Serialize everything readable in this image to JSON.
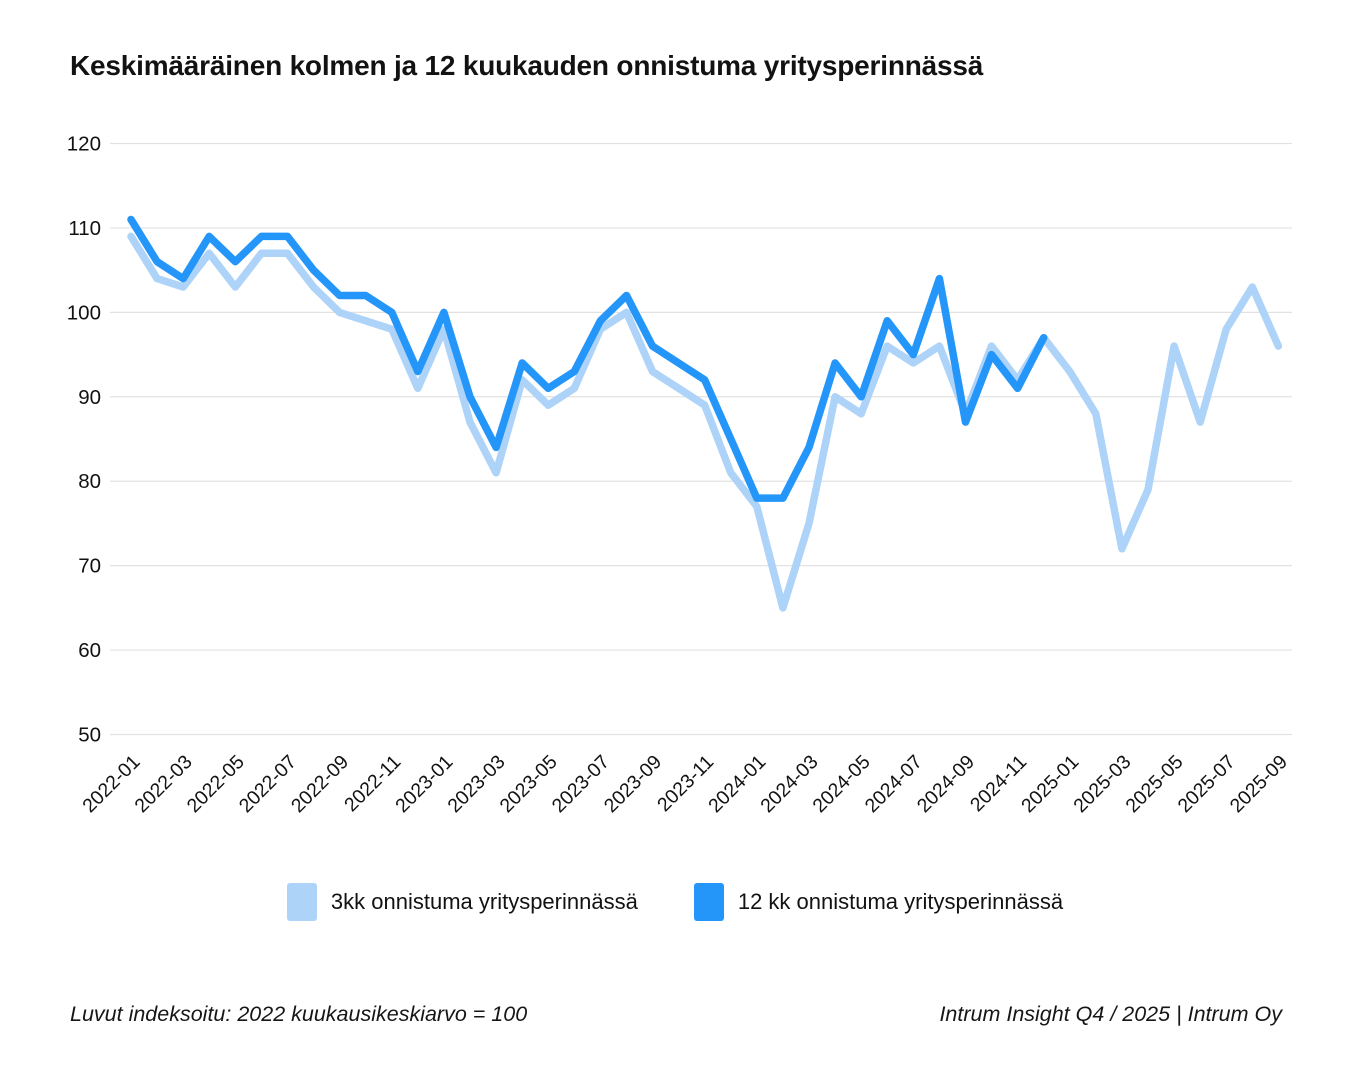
{
  "title": "Keskimääräinen kolmen ja 12 kuukauden onnistuma yritysperinnässä",
  "legend": [
    {
      "label": "3kk onnistuma yritysperinnässä",
      "color": "#aed3f9"
    },
    {
      "label": "12 kk onnistuma yritysperinnässä",
      "color": "#2596f9"
    }
  ],
  "footer": {
    "left": "Luvut indeksoitu: 2022 kuukausikeskiarvo = 100",
    "right": "Intrum Insight Q4 / 2025 | Intrum Oy"
  },
  "colors": {
    "series_3kk": "#aed3f9",
    "series_12kk": "#2596f9",
    "gridline": "#e2e2e2",
    "text": "#121212"
  },
  "chart_data": {
    "type": "line",
    "title": "Keskimääräinen kolmen ja 12 kuukauden onnistuma yritysperinnässä",
    "xlabel": "",
    "ylabel": "",
    "ylim": [
      50,
      120
    ],
    "ytick_step": 10,
    "yticks": [
      120,
      110,
      100,
      90,
      80,
      70,
      60,
      50
    ],
    "grid": true,
    "legend_position": "bottom",
    "x": [
      "2022-01",
      "2022-02",
      "2022-03",
      "2022-04",
      "2022-05",
      "2022-06",
      "2022-07",
      "2022-08",
      "2022-09",
      "2022-10",
      "2022-11",
      "2022-12",
      "2023-01",
      "2023-02",
      "2023-03",
      "2023-04",
      "2023-05",
      "2023-06",
      "2023-07",
      "2023-08",
      "2023-09",
      "2023-10",
      "2023-11",
      "2023-12",
      "2024-01",
      "2024-02",
      "2024-03",
      "2024-04",
      "2024-05",
      "2024-06",
      "2024-07",
      "2024-08",
      "2024-09",
      "2024-10",
      "2024-11",
      "2024-12",
      "2025-01",
      "2025-02",
      "2025-03",
      "2025-04",
      "2025-05",
      "2025-06",
      "2025-07",
      "2025-08",
      "2025-09"
    ],
    "x_tick_labels": [
      "2022-01",
      "2022-03",
      "2022-05",
      "2022-07",
      "2022-09",
      "2022-11",
      "2023-01",
      "2023-03",
      "2023-05",
      "2023-07",
      "2023-09",
      "2023-11",
      "2024-01",
      "2024-03",
      "2024-05",
      "2024-07",
      "2024-09",
      "2024-11",
      "2025-01",
      "2025-03",
      "2025-05",
      "2025-07",
      "2025-09"
    ],
    "series": [
      {
        "name": "3kk onnistuma yritysperinnässä",
        "color": "#aed3f9",
        "values": [
          109,
          104,
          103,
          107,
          103,
          107,
          107,
          103,
          100,
          99,
          98,
          91,
          98,
          87,
          81,
          92,
          89,
          91,
          98,
          100,
          93,
          91,
          89,
          81,
          77,
          65,
          75,
          90,
          88,
          96,
          94,
          96,
          88,
          96,
          92,
          97,
          93,
          88,
          72,
          79,
          96,
          87,
          98,
          103,
          96
        ]
      },
      {
        "name": "12 kk onnistuma yritysperinnässä",
        "color": "#2596f9",
        "values": [
          111,
          106,
          104,
          109,
          106,
          109,
          109,
          105,
          102,
          102,
          100,
          93,
          100,
          90,
          84,
          94,
          91,
          93,
          99,
          102,
          96,
          94,
          92,
          85,
          78,
          78,
          84,
          94,
          90,
          99,
          95,
          104,
          87,
          95,
          91,
          97,
          null,
          null,
          null,
          null,
          null,
          null,
          null,
          null,
          null
        ]
      }
    ]
  }
}
